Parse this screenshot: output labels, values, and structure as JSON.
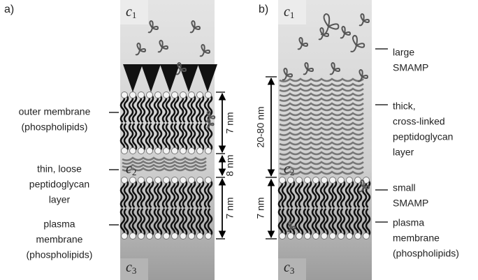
{
  "panel_a": {
    "label": "a)",
    "c1": {
      "symbol": "c",
      "subscript": "1"
    },
    "c2": {
      "symbol": "c",
      "subscript": "2"
    },
    "c3": {
      "symbol": "c",
      "subscript": "3"
    },
    "outer_membrane": [
      "outer membrane",
      "(phospholipids)"
    ],
    "peptidoglycan": [
      "thin, loose",
      "peptidoglycan",
      "layer"
    ],
    "plasma_membrane": [
      "plasma",
      "membrane",
      "(phospholipids)"
    ],
    "dimensions": [
      "7 nm",
      "8 nm",
      "7 nm"
    ]
  },
  "panel_b": {
    "label": "b)",
    "c1": {
      "symbol": "c",
      "subscript": "1"
    },
    "c2": {
      "symbol": "c",
      "subscript": "2"
    },
    "c3": {
      "symbol": "c",
      "subscript": "3"
    },
    "large_smamp": [
      "large",
      "SMAMP"
    ],
    "peptidoglycan": [
      "thick,",
      "cross-linked",
      "peptidoglycan",
      "layer"
    ],
    "small_smamp": [
      "small",
      "SMAMP"
    ],
    "plasma_membrane": [
      "plasma",
      "membrane",
      "(phospholipids)"
    ],
    "dimensions": [
      "20-80 nm",
      "7 nm"
    ]
  }
}
